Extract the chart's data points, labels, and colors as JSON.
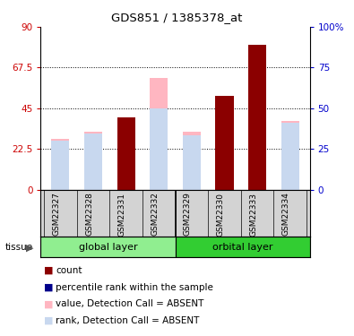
{
  "title": "GDS851 / 1385378_at",
  "samples": [
    "GSM22327",
    "GSM22328",
    "GSM22331",
    "GSM22332",
    "GSM22329",
    "GSM22330",
    "GSM22333",
    "GSM22334"
  ],
  "ylim_left": [
    0,
    90
  ],
  "ylim_right": [
    0,
    100
  ],
  "yticks_left": [
    0,
    22.5,
    45,
    67.5,
    90
  ],
  "yticks_right": [
    0,
    25,
    50,
    75,
    100
  ],
  "ytick_labels_left": [
    "0",
    "22.5",
    "45",
    "67.5",
    "90"
  ],
  "ytick_labels_right": [
    "0",
    "25",
    "50",
    "75",
    "100%"
  ],
  "count_values": [
    0,
    0,
    40,
    0,
    0,
    52,
    80,
    0
  ],
  "rank_values": [
    0,
    0,
    38,
    0,
    0,
    45,
    46,
    0
  ],
  "pink_values": [
    28,
    32,
    40,
    62,
    32,
    52,
    80,
    38
  ],
  "lavender_values": [
    27,
    31,
    38,
    45,
    30,
    43,
    45,
    37
  ],
  "bar_width": 0.55,
  "color_count": "#8B0000",
  "color_rank": "#00008B",
  "color_pink": "#FFB6C1",
  "color_lavender": "#c8d8ef",
  "left_axis_color": "#cc0000",
  "right_axis_color": "#0000cc",
  "grid_color": "#000000",
  "group_labels": [
    "global layer",
    "orbital layer"
  ],
  "global_color": "#90ee90",
  "orbital_color": "#32cd32",
  "legend_items": [
    "count",
    "percentile rank within the sample",
    "value, Detection Call = ABSENT",
    "rank, Detection Call = ABSENT"
  ]
}
